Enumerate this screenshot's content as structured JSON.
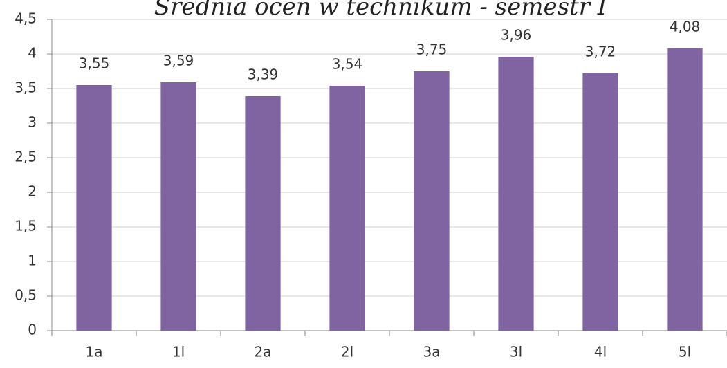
{
  "chart_data": {
    "type": "bar",
    "title": "Średnia ocen w technikum  - semestr I",
    "categories": [
      "1a",
      "1l",
      "2a",
      "2l",
      "3a",
      "3l",
      "4l",
      "5l"
    ],
    "values": [
      3.55,
      3.59,
      3.39,
      3.54,
      3.75,
      3.96,
      3.72,
      4.08
    ],
    "value_labels": [
      "3,55",
      "3,59",
      "3,39",
      "3,54",
      "3,75",
      "3,96",
      "3,72",
      "4,08"
    ],
    "color": "#8064a2",
    "ylim": [
      0,
      4.5
    ],
    "yticks": [
      0,
      {
        "value": 0.5,
        "label": "0,5"
      },
      1,
      {
        "value": 1.5,
        "label": "1,5"
      },
      2,
      {
        "value": 2.5,
        "label": "2,5"
      },
      3,
      {
        "value": 3.5,
        "label": "3,5"
      },
      4,
      {
        "value": 4.5,
        "label": "4,5"
      }
    ],
    "grid": true
  }
}
